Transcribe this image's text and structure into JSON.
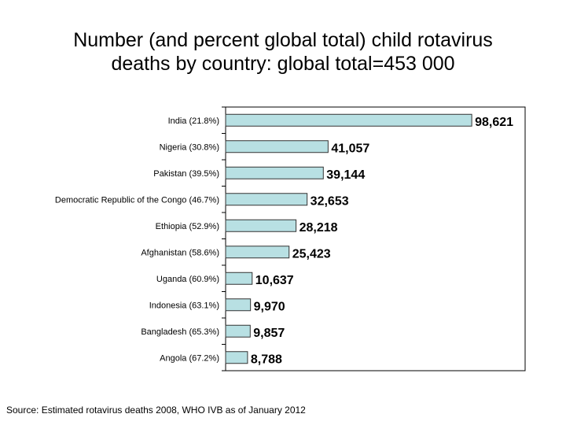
{
  "chart_data": {
    "type": "bar",
    "orientation": "horizontal",
    "title_lines": [
      "Number (and percent global total) child rotavirus",
      "deaths by country: global total=453 000"
    ],
    "categories": [
      "India (21.8%)",
      "Nigeria (30.8%)",
      "Pakistan (39.5%)",
      "Democratic Republic of the Congo (46.7%)",
      "Ethiopia (52.9%)",
      "Afghanistan (58.6%)",
      "Uganda (60.9%)",
      "Indonesia (63.1%)",
      "Bangladesh (65.3%)",
      "Angola (67.2%)"
    ],
    "values": [
      98621,
      41057,
      39144,
      32653,
      28218,
      25423,
      10637,
      9970,
      9857,
      8788
    ],
    "data_labels": [
      "98,621",
      "41,057",
      "39,144",
      "32,653",
      "28,218",
      "25,423",
      "10,637",
      "9,970",
      "9,857",
      "8,788"
    ],
    "xlim": [
      0,
      120000
    ],
    "xlabel": "",
    "ylabel": "",
    "grid": false,
    "colors": {
      "bar_fill": "#b8e0e3",
      "bar_stroke": "#333333"
    }
  },
  "source": "Source: Estimated rotavirus deaths 2008, WHO IVB as of January 2012"
}
